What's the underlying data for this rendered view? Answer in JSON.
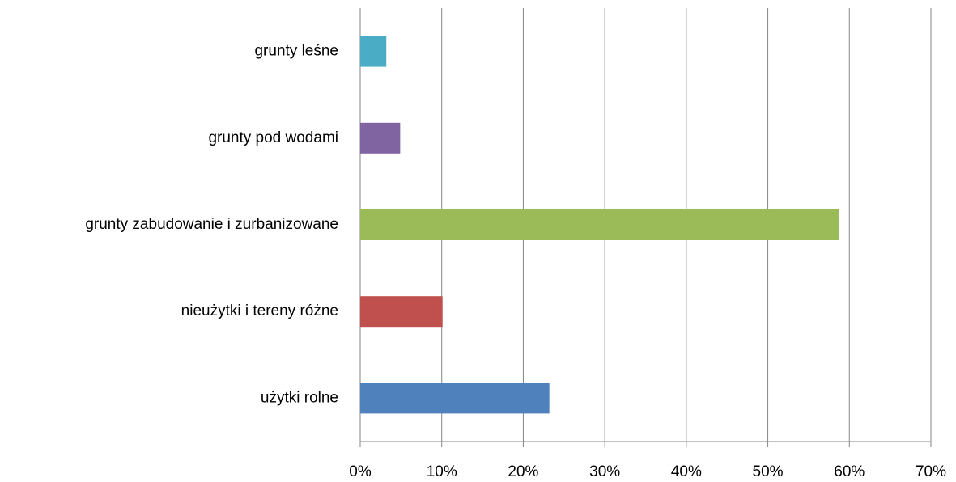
{
  "chart_data": {
    "type": "bar",
    "orientation": "horizontal",
    "categories": [
      "grunty leśne",
      "grunty pod wodami",
      "grunty zabudowanie i zurbanizowane",
      "nieużytki i tereny różne",
      "użytki rolne"
    ],
    "values": [
      3.2,
      4.9,
      58.7,
      10.1,
      23.2
    ],
    "colors": [
      "#4bacc6",
      "#8064a2",
      "#9bbb59",
      "#c0504d",
      "#4f81bd"
    ],
    "xlim": [
      0,
      70
    ],
    "xticks": [
      {
        "value": 0,
        "label": "0%"
      },
      {
        "value": 10,
        "label": "10%"
      },
      {
        "value": 20,
        "label": "20%"
      },
      {
        "value": 30,
        "label": "30%"
      },
      {
        "value": 40,
        "label": "40%"
      },
      {
        "value": 50,
        "label": "50%"
      },
      {
        "value": 60,
        "label": "60%"
      },
      {
        "value": 70,
        "label": "70%"
      }
    ],
    "grid": true
  }
}
